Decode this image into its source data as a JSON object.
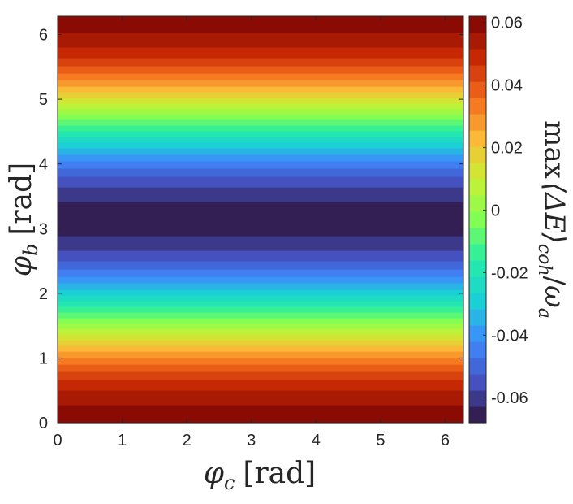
{
  "chart_data": {
    "type": "heatmap",
    "title": "",
    "xlabel": {
      "symbol": "φ",
      "sub": "c",
      "unit": "[rad]"
    },
    "ylabel": {
      "symbol": "φ",
      "sub": "b",
      "unit": "[rad]"
    },
    "colorbar_label": {
      "op": "max",
      "symbol": "⟨ΔE⟩",
      "sub": "coh",
      "divider": "/",
      "den": "ω",
      "den_sub": "a"
    },
    "xlim": [
      0,
      6.283
    ],
    "ylim": [
      0,
      6.283
    ],
    "clim": [
      -0.068,
      0.062
    ],
    "x_ticks": [
      0,
      1,
      2,
      3,
      4,
      5,
      6
    ],
    "x_tick_labels": [
      "0",
      "1",
      "2",
      "3",
      "4",
      "5",
      "6"
    ],
    "y_ticks": [
      0,
      1,
      2,
      3,
      4,
      5,
      6
    ],
    "y_tick_labels": [
      "0",
      "1",
      "2",
      "3",
      "4",
      "5",
      "6"
    ],
    "colorbar_ticks": [
      -0.06,
      -0.04,
      -0.02,
      0,
      0.02,
      0.04,
      0.06
    ],
    "colorbar_tick_labels": [
      "-0.06",
      "-0.04",
      "-0.02",
      "0",
      "0.02",
      "0.04",
      "0.06"
    ],
    "colormap": "turbo",
    "z_function": "z = 0.062*cos(phi_b) - 0.003, constant along phi_c",
    "contour_levels": 25,
    "grid": false
  }
}
